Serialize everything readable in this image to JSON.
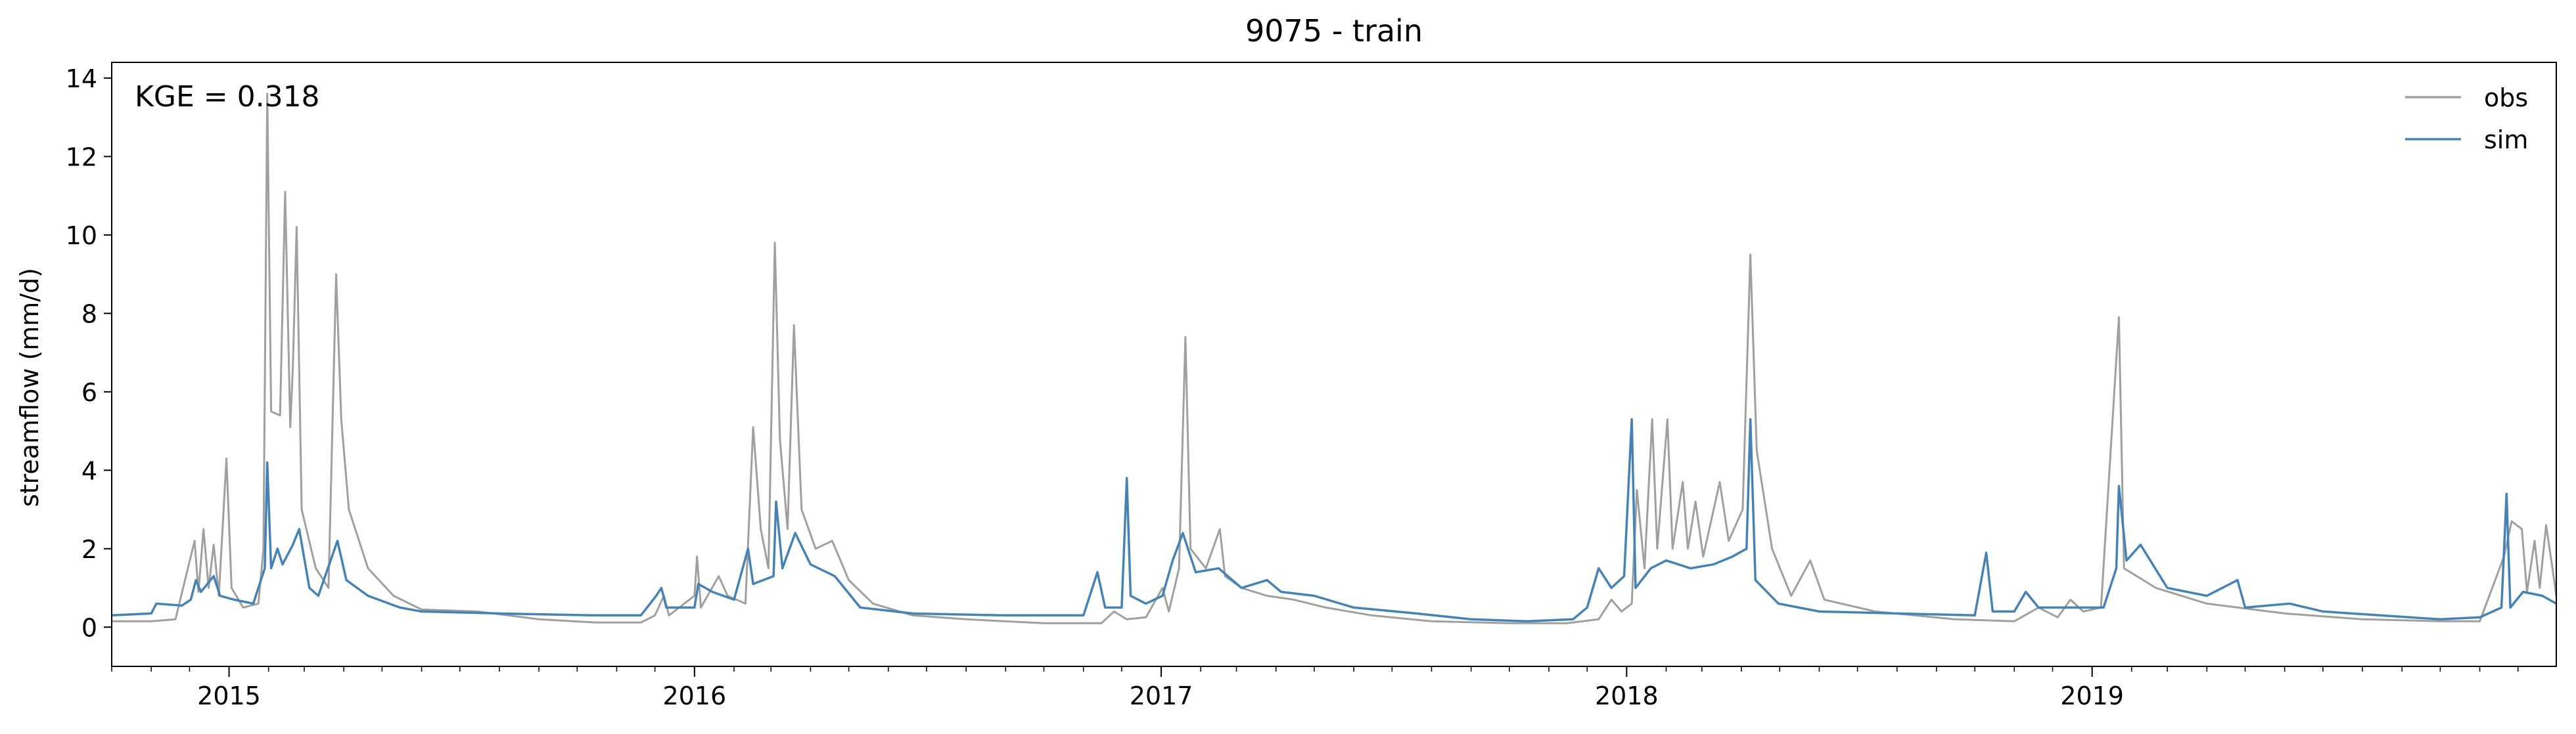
{
  "chart_data": {
    "type": "line",
    "title": "9075 - train",
    "ylabel": "streamflow (mm/d)",
    "xlabel": "",
    "annotation": "KGE = 0.318",
    "xlim": [
      "2014-10-01",
      "2019-12-31"
    ],
    "ylim": [
      -1.0,
      14.4
    ],
    "y_ticks": [
      0,
      2,
      4,
      6,
      8,
      10,
      12,
      14
    ],
    "x_ticks": [
      {
        "date": "2015-01-01",
        "label": "2015"
      },
      {
        "date": "2016-01-01",
        "label": "2016"
      },
      {
        "date": "2017-01-01",
        "label": "2017"
      },
      {
        "date": "2018-01-01",
        "label": "2018"
      },
      {
        "date": "2019-01-01",
        "label": "2019"
      }
    ],
    "legend_position": "top-right",
    "grid": false,
    "series": [
      {
        "name": "obs",
        "color": "#a0a0a0",
        "points": [
          [
            "2014-10-01",
            0.15
          ],
          [
            "2014-11-01",
            0.15
          ],
          [
            "2014-11-20",
            0.2
          ],
          [
            "2014-12-05",
            2.2
          ],
          [
            "2014-12-08",
            0.9
          ],
          [
            "2014-12-12",
            2.5
          ],
          [
            "2014-12-16",
            1.0
          ],
          [
            "2014-12-20",
            2.1
          ],
          [
            "2014-12-24",
            0.8
          ],
          [
            "2014-12-30",
            4.3
          ],
          [
            "2015-01-03",
            1.0
          ],
          [
            "2015-01-12",
            0.5
          ],
          [
            "2015-01-24",
            0.6
          ],
          [
            "2015-01-28",
            2.0
          ],
          [
            "2015-01-31",
            13.6
          ],
          [
            "2015-02-03",
            5.5
          ],
          [
            "2015-02-10",
            5.4
          ],
          [
            "2015-02-14",
            11.1
          ],
          [
            "2015-02-18",
            5.1
          ],
          [
            "2015-02-20",
            6.6
          ],
          [
            "2015-02-23",
            10.2
          ],
          [
            "2015-02-27",
            3.0
          ],
          [
            "2015-03-10",
            1.5
          ],
          [
            "2015-03-20",
            1.0
          ],
          [
            "2015-03-26",
            9.0
          ],
          [
            "2015-03-30",
            5.3
          ],
          [
            "2015-04-05",
            3.0
          ],
          [
            "2015-04-20",
            1.5
          ],
          [
            "2015-05-10",
            0.8
          ],
          [
            "2015-06-01",
            0.45
          ],
          [
            "2015-07-15",
            0.4
          ],
          [
            "2015-09-01",
            0.2
          ],
          [
            "2015-10-15",
            0.12
          ],
          [
            "2015-11-20",
            0.12
          ],
          [
            "2015-12-01",
            0.3
          ],
          [
            "2015-12-08",
            0.8
          ],
          [
            "2015-12-12",
            0.3
          ],
          [
            "2016-01-01",
            0.8
          ],
          [
            "2016-01-03",
            1.8
          ],
          [
            "2016-01-06",
            0.5
          ],
          [
            "2016-01-20",
            1.3
          ],
          [
            "2016-01-27",
            0.8
          ],
          [
            "2016-02-10",
            0.6
          ],
          [
            "2016-02-16",
            5.1
          ],
          [
            "2016-02-22",
            2.5
          ],
          [
            "2016-02-28",
            1.5
          ],
          [
            "2016-03-04",
            9.8
          ],
          [
            "2016-03-08",
            4.8
          ],
          [
            "2016-03-14",
            2.5
          ],
          [
            "2016-03-19",
            7.7
          ],
          [
            "2016-03-25",
            3.0
          ],
          [
            "2016-04-05",
            2.0
          ],
          [
            "2016-04-18",
            2.2
          ],
          [
            "2016-05-01",
            1.2
          ],
          [
            "2016-05-20",
            0.6
          ],
          [
            "2016-06-20",
            0.3
          ],
          [
            "2016-08-01",
            0.2
          ],
          [
            "2016-10-01",
            0.1
          ],
          [
            "2016-11-15",
            0.1
          ],
          [
            "2016-11-25",
            0.4
          ],
          [
            "2016-12-05",
            0.2
          ],
          [
            "2016-12-20",
            0.25
          ],
          [
            "2017-01-02",
            1.0
          ],
          [
            "2017-01-07",
            0.4
          ],
          [
            "2017-01-15",
            1.5
          ],
          [
            "2017-01-20",
            7.4
          ],
          [
            "2017-01-24",
            2.0
          ],
          [
            "2017-02-05",
            1.5
          ],
          [
            "2017-02-16",
            2.5
          ],
          [
            "2017-02-20",
            1.3
          ],
          [
            "2017-03-05",
            1.0
          ],
          [
            "2017-03-25",
            0.8
          ],
          [
            "2017-04-15",
            0.7
          ],
          [
            "2017-05-10",
            0.5
          ],
          [
            "2017-06-15",
            0.3
          ],
          [
            "2017-08-01",
            0.15
          ],
          [
            "2017-10-01",
            0.1
          ],
          [
            "2017-11-15",
            0.1
          ],
          [
            "2017-12-10",
            0.2
          ],
          [
            "2017-12-20",
            0.7
          ],
          [
            "2017-12-28",
            0.4
          ],
          [
            "2018-01-05",
            0.6
          ],
          [
            "2018-01-09",
            3.5
          ],
          [
            "2018-01-15",
            1.5
          ],
          [
            "2018-01-21",
            5.3
          ],
          [
            "2018-01-25",
            2.0
          ],
          [
            "2018-02-02",
            5.3
          ],
          [
            "2018-02-06",
            2.0
          ],
          [
            "2018-02-14",
            3.7
          ],
          [
            "2018-02-18",
            2.0
          ],
          [
            "2018-02-24",
            3.2
          ],
          [
            "2018-03-02",
            1.8
          ],
          [
            "2018-03-15",
            3.7
          ],
          [
            "2018-03-22",
            2.2
          ],
          [
            "2018-04-02",
            3.0
          ],
          [
            "2018-04-08",
            9.5
          ],
          [
            "2018-04-13",
            4.5
          ],
          [
            "2018-04-25",
            2.0
          ],
          [
            "2018-05-10",
            0.8
          ],
          [
            "2018-05-25",
            1.7
          ],
          [
            "2018-06-05",
            0.7
          ],
          [
            "2018-07-15",
            0.4
          ],
          [
            "2018-09-15",
            0.2
          ],
          [
            "2018-11-01",
            0.15
          ],
          [
            "2018-11-20",
            0.5
          ],
          [
            "2018-12-05",
            0.25
          ],
          [
            "2018-12-15",
            0.7
          ],
          [
            "2018-12-25",
            0.4
          ],
          [
            "2019-01-08",
            0.5
          ],
          [
            "2019-01-22",
            7.9
          ],
          [
            "2019-01-26",
            1.5
          ],
          [
            "2019-02-20",
            1.0
          ],
          [
            "2019-04-01",
            0.6
          ],
          [
            "2019-06-01",
            0.35
          ],
          [
            "2019-08-01",
            0.2
          ],
          [
            "2019-10-01",
            0.15
          ],
          [
            "2019-11-01",
            0.15
          ],
          [
            "2019-11-20",
            1.8
          ],
          [
            "2019-11-26",
            2.7
          ],
          [
            "2019-12-04",
            2.5
          ],
          [
            "2019-12-08",
            0.9
          ],
          [
            "2019-12-14",
            2.2
          ],
          [
            "2019-12-18",
            1.0
          ],
          [
            "2019-12-23",
            2.6
          ],
          [
            "2019-12-28",
            1.5
          ],
          [
            "2019-12-31",
            0.8
          ]
        ]
      },
      {
        "name": "sim",
        "color": "#4682b4",
        "points": [
          [
            "2014-10-01",
            0.3
          ],
          [
            "2014-11-01",
            0.35
          ],
          [
            "2014-11-05",
            0.6
          ],
          [
            "2014-11-25",
            0.55
          ],
          [
            "2014-12-02",
            0.7
          ],
          [
            "2014-12-06",
            1.2
          ],
          [
            "2014-12-10",
            0.9
          ],
          [
            "2014-12-20",
            1.3
          ],
          [
            "2014-12-25",
            0.8
          ],
          [
            "2015-01-05",
            0.7
          ],
          [
            "2015-01-20",
            0.6
          ],
          [
            "2015-01-29",
            1.5
          ],
          [
            "2015-01-31",
            4.2
          ],
          [
            "2015-02-03",
            1.5
          ],
          [
            "2015-02-08",
            2.0
          ],
          [
            "2015-02-12",
            1.6
          ],
          [
            "2015-02-20",
            2.1
          ],
          [
            "2015-02-25",
            2.5
          ],
          [
            "2015-03-05",
            1.0
          ],
          [
            "2015-03-12",
            0.8
          ],
          [
            "2015-03-27",
            2.2
          ],
          [
            "2015-04-03",
            1.2
          ],
          [
            "2015-04-20",
            0.8
          ],
          [
            "2015-05-15",
            0.5
          ],
          [
            "2015-06-01",
            0.4
          ],
          [
            "2015-08-01",
            0.35
          ],
          [
            "2015-10-15",
            0.3
          ],
          [
            "2015-11-20",
            0.3
          ],
          [
            "2015-12-02",
            0.8
          ],
          [
            "2015-12-06",
            1.0
          ],
          [
            "2015-12-10",
            0.5
          ],
          [
            "2016-01-01",
            0.5
          ],
          [
            "2016-01-04",
            1.1
          ],
          [
            "2016-01-15",
            0.9
          ],
          [
            "2016-02-01",
            0.7
          ],
          [
            "2016-02-12",
            2.0
          ],
          [
            "2016-02-16",
            1.1
          ],
          [
            "2016-03-03",
            1.3
          ],
          [
            "2016-03-05",
            3.2
          ],
          [
            "2016-03-10",
            1.5
          ],
          [
            "2016-03-20",
            2.4
          ],
          [
            "2016-04-01",
            1.6
          ],
          [
            "2016-04-20",
            1.3
          ],
          [
            "2016-05-10",
            0.5
          ],
          [
            "2016-06-20",
            0.35
          ],
          [
            "2016-09-01",
            0.3
          ],
          [
            "2016-11-01",
            0.3
          ],
          [
            "2016-11-12",
            1.4
          ],
          [
            "2016-11-18",
            0.5
          ],
          [
            "2016-12-01",
            0.5
          ],
          [
            "2016-12-05",
            3.8
          ],
          [
            "2016-12-08",
            0.8
          ],
          [
            "2016-12-20",
            0.6
          ],
          [
            "2017-01-02",
            0.8
          ],
          [
            "2017-01-10",
            1.7
          ],
          [
            "2017-01-18",
            2.4
          ],
          [
            "2017-01-28",
            1.4
          ],
          [
            "2017-02-15",
            1.5
          ],
          [
            "2017-03-05",
            1.0
          ],
          [
            "2017-03-25",
            1.2
          ],
          [
            "2017-04-05",
            0.9
          ],
          [
            "2017-05-01",
            0.8
          ],
          [
            "2017-06-01",
            0.5
          ],
          [
            "2017-07-20",
            0.35
          ],
          [
            "2017-09-01",
            0.2
          ],
          [
            "2017-10-15",
            0.15
          ],
          [
            "2017-11-20",
            0.2
          ],
          [
            "2017-12-01",
            0.5
          ],
          [
            "2017-12-10",
            1.5
          ],
          [
            "2017-12-20",
            1.0
          ],
          [
            "2017-12-30",
            1.3
          ],
          [
            "2018-01-05",
            5.3
          ],
          [
            "2018-01-08",
            1.0
          ],
          [
            "2018-01-20",
            1.5
          ],
          [
            "2018-02-01",
            1.7
          ],
          [
            "2018-02-20",
            1.5
          ],
          [
            "2018-03-10",
            1.6
          ],
          [
            "2018-03-25",
            1.8
          ],
          [
            "2018-04-05",
            2.0
          ],
          [
            "2018-04-08",
            5.3
          ],
          [
            "2018-04-12",
            1.2
          ],
          [
            "2018-04-30",
            0.6
          ],
          [
            "2018-06-01",
            0.4
          ],
          [
            "2018-08-01",
            0.35
          ],
          [
            "2018-10-01",
            0.3
          ],
          [
            "2018-10-10",
            1.9
          ],
          [
            "2018-10-15",
            0.4
          ],
          [
            "2018-11-01",
            0.4
          ],
          [
            "2018-11-10",
            0.9
          ],
          [
            "2018-11-20",
            0.5
          ],
          [
            "2018-12-10",
            0.5
          ],
          [
            "2019-01-10",
            0.5
          ],
          [
            "2019-01-20",
            1.5
          ],
          [
            "2019-01-22",
            3.6
          ],
          [
            "2019-01-28",
            1.7
          ],
          [
            "2019-02-08",
            2.1
          ],
          [
            "2019-03-01",
            1.0
          ],
          [
            "2019-04-01",
            0.8
          ],
          [
            "2019-04-25",
            1.2
          ],
          [
            "2019-05-01",
            0.5
          ],
          [
            "2019-06-05",
            0.6
          ],
          [
            "2019-07-01",
            0.4
          ],
          [
            "2019-08-15",
            0.3
          ],
          [
            "2019-10-01",
            0.2
          ],
          [
            "2019-11-01",
            0.25
          ],
          [
            "2019-11-18",
            0.5
          ],
          [
            "2019-11-22",
            3.4
          ],
          [
            "2019-11-25",
            0.5
          ],
          [
            "2019-12-05",
            0.9
          ],
          [
            "2019-12-20",
            0.8
          ],
          [
            "2019-12-31",
            0.6
          ]
        ]
      }
    ]
  }
}
